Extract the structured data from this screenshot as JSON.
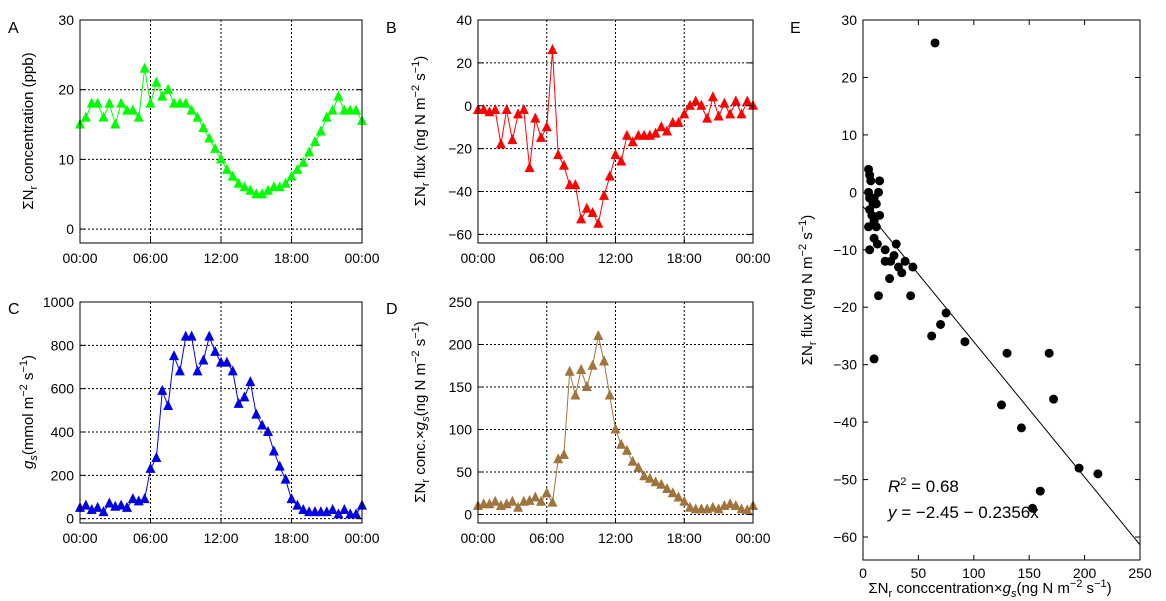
{
  "chart_data": [
    {
      "panel": "A",
      "type": "line",
      "marker": "triangle",
      "color": "#00ff00",
      "ylabel": "ΣN_r concentration (ppb)",
      "xlabel": "",
      "ylim": [
        -2,
        30
      ],
      "yticks": [
        0,
        10,
        20,
        30
      ],
      "xlim": [
        0,
        24
      ],
      "xticks": [
        0,
        6,
        12,
        18,
        24
      ],
      "xticklabels": [
        "00:00",
        "06:00",
        "12:00",
        "18:00",
        "00:00"
      ],
      "grid": true,
      "series": [
        {
          "x": [
            0.0,
            0.5,
            1.0,
            1.5,
            2.0,
            2.5,
            3.0,
            3.5,
            4.0,
            4.5,
            5.0,
            5.5,
            6.0,
            6.5,
            7.0,
            7.5,
            8.0,
            8.5,
            9.0,
            9.5,
            10.0,
            10.5,
            11.0,
            11.5,
            12.0,
            12.5,
            13.0,
            13.5,
            14.0,
            14.5,
            15.0,
            15.5,
            16.0,
            16.5,
            17.0,
            17.5,
            18.0,
            18.5,
            19.0,
            19.5,
            20.0,
            20.5,
            21.0,
            21.5,
            22.0,
            22.5,
            23.0,
            23.5,
            24.0
          ],
          "y": [
            15,
            16,
            18,
            18,
            16,
            18,
            15,
            18,
            17,
            17,
            16,
            23,
            18,
            21,
            19,
            20,
            18,
            18,
            18,
            17,
            16,
            14.5,
            13,
            11.5,
            10,
            8.5,
            7.5,
            6.5,
            6,
            5.5,
            5,
            5,
            5.5,
            6,
            6,
            6.5,
            7.5,
            8.5,
            9.5,
            11,
            12.5,
            14,
            16,
            17,
            19,
            17,
            17,
            17,
            15.5
          ]
        }
      ]
    },
    {
      "panel": "B",
      "type": "line",
      "marker": "triangle",
      "color": "#ff0000",
      "ylabel": "ΣN_r flux (ng N m^-2 s^-1)",
      "xlabel": "",
      "ylim": [
        -64,
        40
      ],
      "yticks": [
        -60,
        -40,
        -20,
        0,
        20,
        40
      ],
      "xlim": [
        0,
        24
      ],
      "xticks": [
        0,
        6,
        12,
        18,
        24
      ],
      "xticklabels": [
        "00:00",
        "06:00",
        "12:00",
        "18:00",
        "00:00"
      ],
      "grid": true,
      "series": [
        {
          "x": [
            0.0,
            0.5,
            1.0,
            1.5,
            2.0,
            2.5,
            3.0,
            3.5,
            4.0,
            4.5,
            5.0,
            5.5,
            6.0,
            6.5,
            7.0,
            7.5,
            8.0,
            8.5,
            9.0,
            9.5,
            10.0,
            10.5,
            11.0,
            11.5,
            12.0,
            12.5,
            13.0,
            13.5,
            14.0,
            14.5,
            15.0,
            15.5,
            16.0,
            16.5,
            17.0,
            17.5,
            18.0,
            18.5,
            19.0,
            19.5,
            20.0,
            20.5,
            21.0,
            21.5,
            22.0,
            22.5,
            23.0,
            23.5,
            24.0
          ],
          "y": [
            -2,
            -2,
            -3,
            -2,
            -18,
            -2,
            -16,
            -4,
            -2,
            -29,
            -6,
            -15,
            -10,
            26,
            -23,
            -28,
            -37,
            -37,
            -53,
            -48,
            -50,
            -55,
            -42,
            -33,
            -23,
            -26,
            -14,
            -17,
            -14,
            -14,
            -14,
            -13,
            -10,
            -12,
            -8,
            -8,
            -4,
            0,
            2,
            0,
            -6,
            4,
            -5,
            1,
            -4,
            2,
            -4,
            2,
            0
          ]
        }
      ]
    },
    {
      "panel": "C",
      "type": "line",
      "marker": "triangle",
      "color": "#0000e6",
      "ylabel": "g_s(mmol m^-2 s^-1)",
      "xlabel": "",
      "ylim": [
        -20,
        1000
      ],
      "yticks": [
        0,
        200,
        400,
        600,
        800,
        1000
      ],
      "xlim": [
        0,
        24
      ],
      "xticks": [
        0,
        6,
        12,
        18,
        24
      ],
      "xticklabels": [
        "00:00",
        "06:00",
        "12:00",
        "18:00",
        "00:00"
      ],
      "grid": true,
      "series": [
        {
          "x": [
            0.0,
            0.5,
            1.0,
            1.5,
            2.0,
            2.5,
            3.0,
            3.5,
            4.0,
            4.5,
            5.0,
            5.5,
            6.0,
            6.5,
            7.0,
            7.5,
            8.0,
            8.5,
            9.0,
            9.5,
            10.0,
            10.5,
            11.0,
            11.5,
            12.0,
            12.5,
            13.0,
            13.5,
            14.0,
            14.5,
            15.0,
            15.5,
            16.0,
            16.5,
            17.0,
            17.5,
            18.0,
            18.5,
            19.0,
            19.5,
            20.0,
            20.5,
            21.0,
            21.5,
            22.0,
            22.5,
            23.0,
            23.5,
            24.0
          ],
          "y": [
            50,
            60,
            40,
            50,
            30,
            70,
            55,
            60,
            50,
            90,
            80,
            90,
            230,
            280,
            590,
            520,
            750,
            680,
            840,
            840,
            680,
            730,
            840,
            770,
            720,
            720,
            680,
            530,
            560,
            630,
            480,
            430,
            400,
            310,
            240,
            180,
            90,
            60,
            40,
            30,
            30,
            30,
            30,
            40,
            20,
            40,
            20,
            20,
            60
          ]
        }
      ]
    },
    {
      "panel": "D",
      "type": "line",
      "marker": "triangle",
      "color": "#a0743c",
      "ylabel": "ΣN_r conc.×g_s(ng N m^-2 s^-1)",
      "xlabel": "",
      "ylim": [
        -10,
        250
      ],
      "yticks": [
        0,
        50,
        100,
        150,
        200,
        250
      ],
      "xlim": [
        0,
        24
      ],
      "xticks": [
        0,
        6,
        12,
        18,
        24
      ],
      "xticklabels": [
        "00:00",
        "06:00",
        "12:00",
        "18:00",
        "00:00"
      ],
      "grid": true,
      "series": [
        {
          "x": [
            0.0,
            0.5,
            1.0,
            1.5,
            2.0,
            2.5,
            3.0,
            3.5,
            4.0,
            4.5,
            5.0,
            5.5,
            6.0,
            6.5,
            7.0,
            7.5,
            8.0,
            8.5,
            9.0,
            9.5,
            10.0,
            10.5,
            11.0,
            11.5,
            12.0,
            12.5,
            13.0,
            13.5,
            14.0,
            14.5,
            15.0,
            15.5,
            16.0,
            16.5,
            17.0,
            17.5,
            18.0,
            18.5,
            19.0,
            19.5,
            20.0,
            20.5,
            21.0,
            21.5,
            22.0,
            22.5,
            23.0,
            23.5,
            24.0
          ],
          "y": [
            10,
            12,
            12,
            15,
            10,
            12,
            15,
            8,
            15,
            16,
            20,
            15,
            25,
            14,
            65,
            70,
            168,
            140,
            170,
            150,
            175,
            210,
            180,
            140,
            100,
            82,
            75,
            62,
            55,
            45,
            42,
            38,
            35,
            30,
            25,
            20,
            15,
            8,
            6,
            6,
            6,
            8,
            6,
            10,
            12,
            10,
            6,
            5,
            10
          ]
        }
      ]
    },
    {
      "panel": "E",
      "type": "scatter",
      "color": "#000000",
      "ylabel": "ΣN_r flux (ng N m^-2 s^-1)",
      "xlabel": "ΣN_r conccentration×g_s(ng N m^-2 s^-1)",
      "xlim": [
        0,
        250
      ],
      "ylim": [
        -64,
        30
      ],
      "xticks": [
        0,
        50,
        100,
        150,
        200,
        250
      ],
      "yticks": [
        -60,
        -50,
        -40,
        -30,
        -20,
        -10,
        0,
        10,
        20,
        30
      ],
      "grid": false,
      "points": [
        {
          "x": 65,
          "y": 26
        },
        {
          "x": 5,
          "y": 4
        },
        {
          "x": 6,
          "y": 3
        },
        {
          "x": 7,
          "y": 2
        },
        {
          "x": 5,
          "y": 0
        },
        {
          "x": 6,
          "y": -1
        },
        {
          "x": 8,
          "y": -1
        },
        {
          "x": 10,
          "y": -1
        },
        {
          "x": 12,
          "y": -2
        },
        {
          "x": 6,
          "y": -3
        },
        {
          "x": 9,
          "y": -2
        },
        {
          "x": 11,
          "y": -2
        },
        {
          "x": 8,
          "y": -4
        },
        {
          "x": 5,
          "y": -6
        },
        {
          "x": 10,
          "y": -5
        },
        {
          "x": 14,
          "y": 0
        },
        {
          "x": 15,
          "y": 2
        },
        {
          "x": 12,
          "y": -6
        },
        {
          "x": 15,
          "y": -4
        },
        {
          "x": 10,
          "y": -8
        },
        {
          "x": 20,
          "y": -10
        },
        {
          "x": 25,
          "y": -12
        },
        {
          "x": 28,
          "y": -11
        },
        {
          "x": 30,
          "y": -9
        },
        {
          "x": 32,
          "y": -13
        },
        {
          "x": 35,
          "y": -14
        },
        {
          "x": 38,
          "y": -12
        },
        {
          "x": 20,
          "y": -12
        },
        {
          "x": 24,
          "y": -15
        },
        {
          "x": 6,
          "y": -10
        },
        {
          "x": 13,
          "y": -9
        },
        {
          "x": 45,
          "y": -13
        },
        {
          "x": 43,
          "y": -18
        },
        {
          "x": 14,
          "y": -18
        },
        {
          "x": 10,
          "y": -29
        },
        {
          "x": 62,
          "y": -25
        },
        {
          "x": 70,
          "y": -23
        },
        {
          "x": 75,
          "y": -21
        },
        {
          "x": 92,
          "y": -26
        },
        {
          "x": 130,
          "y": -28
        },
        {
          "x": 168,
          "y": -28
        },
        {
          "x": 172,
          "y": -36
        },
        {
          "x": 125,
          "y": -37
        },
        {
          "x": 143,
          "y": -41
        },
        {
          "x": 195,
          "y": -48
        },
        {
          "x": 212,
          "y": -49
        },
        {
          "x": 160,
          "y": -52
        },
        {
          "x": 153,
          "y": -55
        }
      ],
      "fit": {
        "intercept": -2.45,
        "slope": -0.2356
      }
    }
  ],
  "panel_labels": {
    "A": "A",
    "B": "B",
    "C": "C",
    "D": "D",
    "E": "E"
  },
  "tick_labels": {
    "time": [
      "00:00",
      "06:00",
      "12:00",
      "18:00",
      "00:00"
    ],
    "A_y": [
      "0",
      "10",
      "20",
      "30"
    ],
    "B_y": [
      "−60",
      "−40",
      "−20",
      "0",
      "20",
      "40"
    ],
    "C_y": [
      "0",
      "200",
      "400",
      "600",
      "800",
      "1000"
    ],
    "D_y": [
      "0",
      "50",
      "100",
      "150",
      "200",
      "250"
    ],
    "E_x": [
      "0",
      "50",
      "100",
      "150",
      "200",
      "250"
    ],
    "E_y": [
      "−60",
      "−50",
      "−40",
      "−30",
      "−20",
      "−10",
      "0",
      "10",
      "20",
      "30"
    ]
  },
  "annotations": {
    "r2_label": "R",
    "r2_exp": "2",
    "r2_value": " = 0.68",
    "eq_var": "y",
    "eq_rest": " = −2.45 − 0.2356x"
  }
}
